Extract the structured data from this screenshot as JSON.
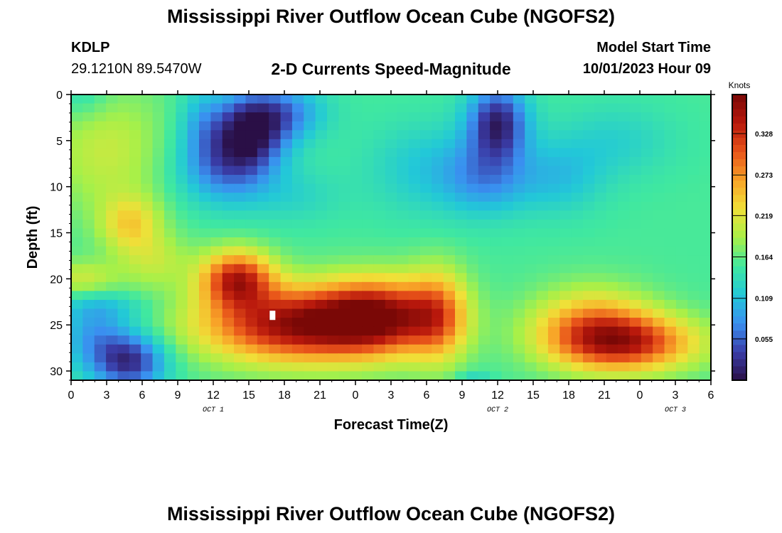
{
  "header": {
    "title": "Mississippi River Outflow Ocean Cube (NGOFS2)",
    "station": "KDLP",
    "coords": "29.1210N  89.5470W",
    "subtitle": "2-D Currents Speed-Magnitude",
    "model_start_label": "Model Start Time",
    "model_start_value": "10/01/2023 Hour 09"
  },
  "footer": {
    "title": "Mississippi River Outflow Ocean Cube (NGOFS2)"
  },
  "chart_data": {
    "type": "heatmap",
    "xlabel": "Forecast Time(Z)",
    "ylabel": "Depth (ft)",
    "x_unit": "hours from 10/01/2023 00Z",
    "xlim": [
      0,
      54
    ],
    "ylim": [
      0,
      31
    ],
    "y_inverted": true,
    "x_ticks": [
      0,
      3,
      6,
      9,
      12,
      15,
      18,
      21,
      24,
      27,
      30,
      33,
      36,
      39,
      42,
      45,
      48,
      51,
      54
    ],
    "x_tick_labels": [
      "0",
      "3",
      "6",
      "9",
      "12",
      "15",
      "18",
      "21",
      "0",
      "3",
      "6",
      "9",
      "12",
      "15",
      "18",
      "21",
      "0",
      "3",
      "6"
    ],
    "y_ticks": [
      0,
      5,
      10,
      15,
      20,
      25,
      30
    ],
    "y_tick_labels": [
      "0",
      "5",
      "10",
      "15",
      "20",
      "25",
      "30"
    ],
    "date_labels": [
      {
        "x": 12,
        "text": "OCT 1"
      },
      {
        "x": 36,
        "text": "OCT 2"
      },
      {
        "x": 51,
        "text": "OCT 3"
      }
    ],
    "colorbar": {
      "label": "Knots",
      "range": [
        0,
        0.38
      ],
      "ticks": [
        0.055,
        0.109,
        0.164,
        0.219,
        0.273,
        0.328
      ],
      "tick_labels": [
        "0.055",
        "0.109",
        "0.164",
        "0.219",
        "0.273",
        "0.328"
      ],
      "colors": [
        "#2a0f46",
        "#3a3da8",
        "#3a8ff0",
        "#22c8d8",
        "#40e8a0",
        "#a8f048",
        "#f0e038",
        "#f8a428",
        "#e8541a",
        "#b8180c",
        "#7a0806"
      ]
    },
    "grid_dims": {
      "nx": 55,
      "ny": 32
    },
    "features": [
      {
        "name": "background",
        "value": 0.155
      },
      {
        "x": 3,
        "y": 6,
        "value": 0.205,
        "sx": 5,
        "sy": 7
      },
      {
        "x": 5,
        "y": 14,
        "value": 0.23,
        "sx": 2.5,
        "sy": 3
      },
      {
        "x": 1,
        "y": 20,
        "value": 0.21,
        "sx": 3,
        "sy": 2
      },
      {
        "x": 7,
        "y": 18,
        "value": 0.2,
        "sx": 3,
        "sy": 3
      },
      {
        "x": 1,
        "y": 0,
        "value": 0.125,
        "sx": 2.5,
        "sy": 3
      },
      {
        "x": 15,
        "y": 4,
        "value": 0.02,
        "sx": 3,
        "sy": 4
      },
      {
        "x": 13,
        "y": 8,
        "value": 0.07,
        "sx": 4,
        "sy": 4
      },
      {
        "x": 18,
        "y": 2,
        "value": 0.08,
        "sx": 3.5,
        "sy": 3
      },
      {
        "x": 11,
        "y": 3,
        "value": 0.11,
        "sx": 2,
        "sy": 4
      },
      {
        "x": 19,
        "y": 11,
        "value": 0.13,
        "sx": 4,
        "sy": 3
      },
      {
        "x": 36,
        "y": 3,
        "value": 0.02,
        "sx": 2.5,
        "sy": 4
      },
      {
        "x": 35,
        "y": 9,
        "value": 0.09,
        "sx": 3.5,
        "sy": 4
      },
      {
        "x": 30,
        "y": 8,
        "value": 0.115,
        "sx": 5,
        "sy": 5
      },
      {
        "x": 41,
        "y": 9,
        "value": 0.11,
        "sx": 4,
        "sy": 4
      },
      {
        "x": 46,
        "y": 5,
        "value": 0.125,
        "sx": 5,
        "sy": 4
      },
      {
        "x": 19,
        "y": 25,
        "value": 0.36,
        "sx": 8,
        "sy": 4
      },
      {
        "x": 14,
        "y": 20,
        "value": 0.33,
        "sx": 3,
        "sy": 3
      },
      {
        "x": 26,
        "y": 24,
        "value": 0.32,
        "sx": 5,
        "sy": 4
      },
      {
        "x": 31,
        "y": 24,
        "value": 0.26,
        "sx": 2.5,
        "sy": 5
      },
      {
        "x": 47,
        "y": 27,
        "value": 0.31,
        "sx": 6,
        "sy": 3
      },
      {
        "x": 44,
        "y": 25,
        "value": 0.26,
        "sx": 5,
        "sy": 4
      },
      {
        "x": 5,
        "y": 29,
        "value": 0.03,
        "sx": 3,
        "sy": 3
      },
      {
        "x": 2,
        "y": 26,
        "value": 0.09,
        "sx": 3,
        "sy": 4
      },
      {
        "x": 3,
        "y": 23,
        "value": 0.13,
        "sx": 4,
        "sy": 1.5
      },
      {
        "x": 34,
        "y": 31,
        "value": 0.12,
        "sx": 1.5,
        "sy": 1
      }
    ],
    "annotations": [
      {
        "x": 17,
        "y": 24,
        "marker": "white-square"
      }
    ]
  }
}
